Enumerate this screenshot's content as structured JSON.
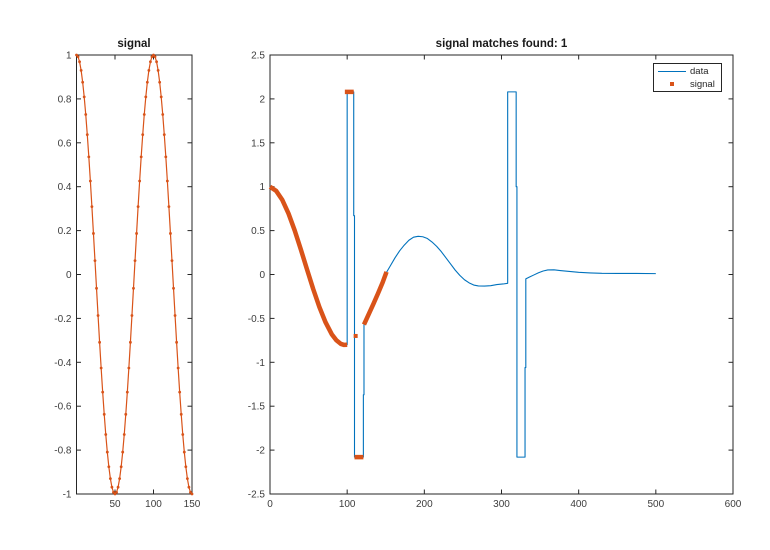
{
  "colors": {
    "background": "#ffffff",
    "axis": "#262626",
    "tick_label": "#3d3d3d",
    "title": "#1a1a1a",
    "data_line": "#0072BD",
    "signal_marker": "#D95319",
    "legend_border": "#262626",
    "legend_background": "#ffffff"
  },
  "chart_data": [
    {
      "id": "signal-template",
      "type": "line",
      "title": "signal",
      "xlabel": "",
      "ylabel": "",
      "xlim": [
        0,
        150
      ],
      "ylim": [
        -1,
        1
      ],
      "xticks": [
        50,
        100,
        150
      ],
      "yticks": [
        -1,
        -0.8,
        -0.6,
        -0.4,
        -0.2,
        0,
        0.2,
        0.4,
        0.6,
        0.8,
        1
      ],
      "grid": false,
      "series": [
        {
          "name": "signal",
          "style": "line-markers",
          "color_key": "signal_marker",
          "x_start": 0,
          "x_step": 2,
          "values": [
            1,
            0.992,
            0.969,
            0.93,
            0.876,
            0.809,
            0.729,
            0.637,
            0.536,
            0.426,
            0.309,
            0.187,
            0.063,
            -0.063,
            -0.187,
            -0.309,
            -0.426,
            -0.536,
            -0.637,
            -0.729,
            -0.809,
            -0.876,
            -0.93,
            -0.969,
            -0.992,
            -1,
            -0.992,
            -0.969,
            -0.93,
            -0.876,
            -0.809,
            -0.729,
            -0.637,
            -0.536,
            -0.426,
            -0.309,
            -0.187,
            -0.063,
            0.063,
            0.187,
            0.309,
            0.426,
            0.536,
            0.637,
            0.729,
            0.809,
            0.876,
            0.93,
            0.969,
            0.992,
            1,
            0.992,
            0.969,
            0.93,
            0.876,
            0.809,
            0.729,
            0.637,
            0.536,
            0.426,
            0.309,
            0.187,
            0.063,
            -0.063,
            -0.187,
            -0.309,
            -0.426,
            -0.536,
            -0.637,
            -0.729,
            -0.809,
            -0.876,
            -0.93,
            -0.969,
            -0.992,
            -1
          ]
        }
      ]
    },
    {
      "id": "signal-matches",
      "type": "line",
      "title": "signal matches found: 1",
      "xlabel": "",
      "ylabel": "",
      "xlim": [
        0,
        600
      ],
      "ylim": [
        -2.5,
        2.5
      ],
      "xticks": [
        0,
        100,
        200,
        300,
        400,
        500,
        600
      ],
      "yticks": [
        -2.5,
        -2,
        -1.5,
        -1,
        -0.5,
        0,
        0.5,
        1,
        1.5,
        2,
        2.5
      ],
      "grid": false,
      "legend": {
        "position": "northeast",
        "entries": [
          {
            "label": "data",
            "style": "line",
            "color_key": "data_line"
          },
          {
            "label": "signal",
            "style": "marker",
            "color_key": "signal_marker"
          }
        ]
      },
      "series": [
        {
          "name": "data",
          "style": "line",
          "color_key": "data_line",
          "points": [
            [
              0,
              1
            ],
            [
              8,
              0.953
            ],
            [
              16,
              0.848
            ],
            [
              24,
              0.694
            ],
            [
              32,
              0.502
            ],
            [
              40,
              0.284
            ],
            [
              48,
              0.057
            ],
            [
              56,
              -0.166
            ],
            [
              64,
              -0.371
            ],
            [
              72,
              -0.545
            ],
            [
              80,
              -0.68
            ],
            [
              86,
              -0.749
            ],
            [
              92,
              -0.791
            ],
            [
              96,
              -0.802
            ],
            [
              100,
              -0.8
            ],
            [
              100,
              2.08
            ],
            [
              108.5,
              2.08
            ],
            [
              108.5,
              0.67
            ],
            [
              109.5,
              0.67
            ],
            [
              109.5,
              -2.08
            ],
            [
              121,
              -2.08
            ],
            [
              121,
              -1.37
            ],
            [
              121.8,
              -1.37
            ],
            [
              121.8,
              -0.57
            ],
            [
              126,
              -0.46
            ],
            [
              132,
              -0.345
            ],
            [
              138,
              -0.23
            ],
            [
              144,
              -0.1
            ],
            [
              150,
              0.01
            ],
            [
              156,
              0.1
            ],
            [
              162,
              0.19
            ],
            [
              168,
              0.27
            ],
            [
              174,
              0.335
            ],
            [
              180,
              0.39
            ],
            [
              186,
              0.425
            ],
            [
              192,
              0.435
            ],
            [
              198,
              0.43
            ],
            [
              204,
              0.41
            ],
            [
              210,
              0.37
            ],
            [
              216,
              0.32
            ],
            [
              222,
              0.26
            ],
            [
              228,
              0.19
            ],
            [
              234,
              0.12
            ],
            [
              240,
              0.05
            ],
            [
              246,
              -0.01
            ],
            [
              252,
              -0.06
            ],
            [
              258,
              -0.095
            ],
            [
              264,
              -0.12
            ],
            [
              270,
              -0.13
            ],
            [
              278,
              -0.132
            ],
            [
              286,
              -0.127
            ],
            [
              294,
              -0.115
            ],
            [
              302,
              -0.108
            ],
            [
              308,
              -0.1
            ],
            [
              308,
              2.08
            ],
            [
              319,
              2.08
            ],
            [
              319,
              1
            ],
            [
              320,
              1
            ],
            [
              320,
              -2.08
            ],
            [
              330.5,
              -2.08
            ],
            [
              330.5,
              -1.06
            ],
            [
              331.5,
              -1.06
            ],
            [
              331.5,
              -0.05
            ],
            [
              336,
              -0.03
            ],
            [
              342,
              -0.005
            ],
            [
              348,
              0.02
            ],
            [
              354,
              0.04
            ],
            [
              360,
              0.052
            ],
            [
              368,
              0.053
            ],
            [
              376,
              0.045
            ],
            [
              388,
              0.035
            ],
            [
              400,
              0.025
            ],
            [
              415,
              0.018
            ],
            [
              430,
              0.013
            ],
            [
              450,
              0.012
            ],
            [
              475,
              0.012
            ],
            [
              500,
              0.01
            ]
          ]
        },
        {
          "name": "signal-match-segments",
          "style": "thick-segments",
          "color_key": "signal_marker",
          "line_width": 4.5,
          "segments": [
            [
              [
                0,
                1
              ],
              [
                8,
                0.953
              ],
              [
                16,
                0.848
              ],
              [
                24,
                0.694
              ],
              [
                32,
                0.502
              ],
              [
                40,
                0.284
              ],
              [
                48,
                0.057
              ],
              [
                56,
                -0.166
              ],
              [
                64,
                -0.371
              ],
              [
                72,
                -0.545
              ],
              [
                80,
                -0.68
              ],
              [
                86,
                -0.749
              ],
              [
                92,
                -0.791
              ],
              [
                96,
                -0.802
              ],
              [
                100,
                -0.8
              ]
            ],
            [
              [
                97,
                2.08
              ],
              [
                108.5,
                2.08
              ]
            ],
            [
              [
                109.5,
                -2.08
              ],
              [
                121,
                -2.08
              ]
            ],
            [
              [
                121.8,
                -0.57
              ],
              [
                128,
                -0.45
              ],
              [
                134,
                -0.335
              ],
              [
                140,
                -0.215
              ],
              [
                146,
                -0.09
              ],
              [
                151,
                0.03
              ]
            ]
          ]
        },
        {
          "name": "signal-match-isolated-point",
          "style": "points",
          "color_key": "signal_marker",
          "points": [
            [
              111,
              -0.7
            ]
          ]
        }
      ]
    }
  ]
}
